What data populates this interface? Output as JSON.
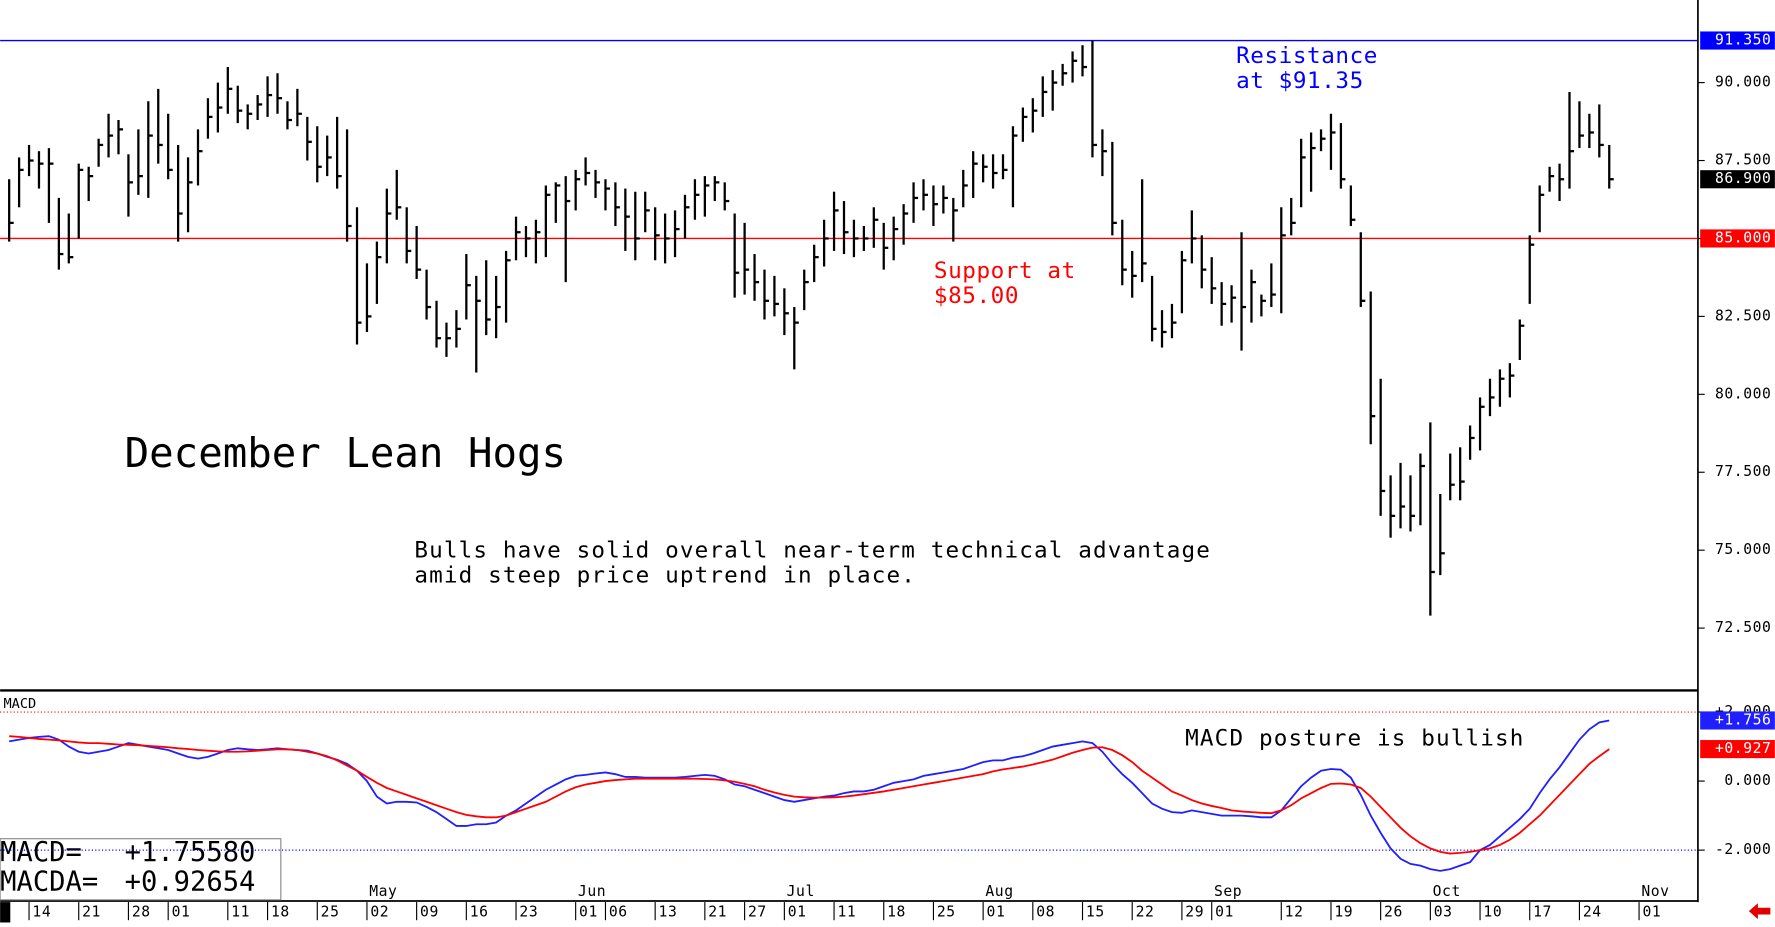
{
  "chart_data": [
    {
      "type": "ohlc",
      "title": "December Lean Hogs",
      "color": "#000000",
      "note": [
        "Bulls have solid overall near-term technical advantage",
        "amid steep price uptrend in place."
      ],
      "ylim": [
        70.5,
        92.65
      ],
      "yticks": [
        {
          "value": 72.5,
          "label": "72.500"
        },
        {
          "value": 75,
          "label": "75.000"
        },
        {
          "value": 77.5,
          "label": "77.500"
        },
        {
          "value": 80,
          "label": "80.000"
        },
        {
          "value": 82.5,
          "label": "82.500"
        },
        {
          "value": 85,
          "label": "85.000"
        },
        {
          "value": 87.5,
          "label": "87.500"
        },
        {
          "value": 90,
          "label": "90.000"
        }
      ],
      "reference_lines": [
        {
          "value": 91.35,
          "label": "91.350",
          "color": "#0000ff",
          "text": [
            "Resistance",
            "at $91.35"
          ]
        },
        {
          "value": 85,
          "label": "85.000",
          "color": "#ff0000",
          "text": [
            "Support at",
            "$85.00"
          ]
        }
      ],
      "last_label": "86.900",
      "high": [
        86.9,
        87.6,
        88.0,
        87.8,
        87.9,
        86.3,
        85.8,
        87.4,
        87.3,
        88.2,
        89.0,
        88.8,
        87.7,
        88.5,
        89.4,
        89.8,
        89.0,
        88.0,
        87.6,
        88.5,
        89.5,
        90.0,
        90.5,
        89.9,
        89.3,
        89.6,
        90.2,
        90.3,
        89.4,
        89.8,
        88.9,
        88.6,
        88.3,
        88.9,
        88.5,
        86.0,
        84.2,
        84.9,
        86.6,
        87.2,
        86.0,
        85.4,
        84.0,
        83.0,
        82.3,
        82.7,
        84.5,
        83.8,
        84.3,
        83.8,
        84.6,
        85.7,
        85.4,
        85.6,
        86.7,
        86.8,
        87.0,
        87.2,
        87.6,
        87.2,
        86.9,
        86.8,
        86.6,
        86.5,
        86.5,
        86.0,
        85.8,
        85.9,
        86.4,
        86.9,
        87.0,
        87.0,
        86.8,
        85.8,
        85.5,
        84.5,
        84.0,
        83.8,
        83.4,
        82.8,
        84.0,
        84.8,
        85.6,
        86.5,
        86.2,
        85.6,
        85.4,
        86.0,
        85.5,
        85.7,
        86.1,
        86.8,
        86.9,
        86.7,
        86.7,
        86.3,
        87.2,
        87.8,
        87.7,
        87.7,
        87.7,
        88.6,
        89.2,
        89.5,
        90.2,
        90.4,
        90.6,
        91.0,
        91.2,
        91.35,
        88.5,
        88.1,
        85.6,
        84.6,
        86.9,
        83.8,
        82.7,
        82.9,
        84.6,
        85.9,
        85.1,
        84.4,
        83.6,
        83.5,
        85.2,
        84.0,
        83.2,
        84.2,
        86.0,
        86.3,
        88.2,
        88.4,
        88.5,
        89.0,
        88.7,
        86.7,
        85.2,
        83.3,
        80.5,
        77.4,
        77.8,
        77.4,
        78.1,
        79.1,
        76.8,
        78.1,
        78.3,
        79.0,
        79.9,
        80.5,
        80.8,
        81.0,
        82.4,
        85.1,
        86.7,
        87.3,
        87.4,
        89.7,
        89.4,
        89.0,
        89.3,
        88.0,
        null,
        null,
        null
      ],
      "low": [
        84.9,
        86.0,
        87.0,
        86.6,
        85.5,
        84.0,
        84.2,
        85.0,
        86.2,
        87.3,
        87.6,
        87.7,
        85.7,
        86.4,
        86.3,
        87.4,
        86.9,
        84.9,
        85.2,
        86.7,
        88.2,
        88.4,
        89.0,
        88.7,
        88.5,
        88.8,
        88.9,
        89.0,
        88.5,
        88.6,
        87.5,
        86.8,
        87.0,
        86.6,
        84.9,
        81.6,
        82.0,
        82.9,
        84.2,
        85.6,
        84.2,
        83.7,
        82.4,
        81.5,
        81.2,
        81.5,
        82.4,
        80.7,
        81.9,
        81.8,
        82.3,
        84.3,
        84.4,
        84.2,
        84.4,
        85.5,
        83.6,
        85.9,
        86.7,
        86.3,
        85.9,
        85.4,
        84.6,
        84.3,
        85.2,
        84.3,
        84.2,
        84.4,
        85.0,
        85.6,
        85.7,
        86.2,
        85.9,
        83.1,
        83.2,
        83.0,
        82.4,
        82.5,
        81.9,
        80.8,
        82.7,
        83.6,
        84.1,
        84.6,
        84.5,
        84.4,
        84.6,
        84.7,
        84.0,
        84.3,
        84.8,
        85.5,
        85.9,
        85.4,
        85.8,
        84.9,
        86.0,
        86.3,
        86.8,
        86.6,
        86.9,
        86.0,
        88.1,
        88.4,
        88.9,
        89.1,
        89.9,
        90.0,
        90.2,
        87.6,
        87.0,
        85.1,
        83.5,
        83.1,
        83.6,
        81.7,
        81.5,
        81.8,
        82.6,
        84.2,
        83.4,
        82.9,
        82.2,
        82.3,
        81.4,
        82.3,
        82.5,
        82.8,
        82.6,
        85.1,
        86.0,
        86.5,
        87.8,
        87.2,
        86.6,
        85.4,
        82.8,
        78.4,
        76.1,
        75.4,
        75.7,
        75.6,
        75.8,
        72.9,
        74.2,
        76.6,
        76.6,
        77.9,
        78.2,
        79.3,
        79.6,
        79.9,
        81.1,
        82.9,
        85.2,
        86.5,
        86.2,
        86.6,
        87.9,
        87.9,
        87.6,
        86.6,
        null,
        null,
        null
      ],
      "close": [
        85.5,
        87.2,
        87.5,
        87.4,
        87.4,
        84.5,
        84.4,
        87.2,
        87.0,
        88.0,
        88.3,
        88.5,
        86.8,
        87.0,
        88.3,
        88.0,
        87.2,
        85.8,
        86.8,
        87.8,
        88.9,
        89.2,
        89.8,
        89.1,
        89.0,
        89.3,
        89.6,
        89.5,
        88.8,
        89.0,
        88.1,
        87.3,
        87.6,
        87.0,
        85.4,
        82.3,
        82.5,
        84.4,
        85.8,
        86.0,
        84.6,
        84.0,
        82.8,
        81.8,
        81.8,
        82.1,
        83.5,
        83.0,
        82.4,
        82.8,
        84.3,
        85.2,
        85.0,
        85.2,
        86.4,
        86.7,
        86.2,
        86.9,
        87.1,
        86.8,
        86.6,
        86.0,
        85.7,
        85.0,
        85.9,
        85.1,
        85.0,
        85.3,
        86.0,
        86.4,
        86.7,
        86.8,
        86.2,
        83.9,
        84.0,
        83.6,
        83.0,
        82.9,
        82.6,
        82.3,
        83.6,
        84.4,
        85.0,
        85.9,
        85.2,
        85.0,
        85.0,
        85.6,
        84.7,
        85.3,
        85.8,
        86.3,
        86.4,
        86.1,
        86.3,
        85.9,
        86.7,
        87.4,
        87.3,
        87.1,
        87.2,
        88.3,
        88.9,
        89.1,
        89.7,
        90.0,
        90.3,
        90.7,
        90.5,
        88.0,
        87.8,
        85.5,
        84.0,
        83.8,
        84.2,
        82.1,
        82.0,
        82.3,
        84.3,
        85.0,
        84.0,
        83.4,
        82.9,
        83.1,
        82.8,
        83.6,
        83.0,
        83.2,
        85.1,
        85.5,
        87.6,
        87.9,
        88.2,
        88.4,
        86.9,
        85.6,
        83.0,
        79.3,
        76.9,
        76.1,
        76.4,
        76.1,
        77.7,
        74.3,
        74.9,
        77.1,
        77.2,
        78.6,
        79.6,
        79.9,
        80.5,
        80.6,
        82.2,
        84.8,
        86.4,
        87.0,
        86.9,
        87.8,
        88.3,
        88.4,
        88.0,
        86.9,
        null,
        null,
        null
      ]
    },
    {
      "type": "line",
      "title": "MACD",
      "note": "MACD posture is bullish",
      "ylim": [
        -3.44,
        2.56
      ],
      "yticks": [
        {
          "value": 2,
          "label": "+2.000",
          "color": "#ff0000"
        },
        {
          "value": 0,
          "label": "0.000"
        },
        {
          "value": -2,
          "label": "-2.000",
          "color": "#0000ff"
        }
      ],
      "categories": [
        null,
        null,
        "14",
        null,
        null,
        null,
        null,
        "21",
        null,
        null,
        null,
        null,
        "28",
        null,
        null,
        null,
        "01",
        null,
        null,
        null,
        null,
        null,
        "11",
        null,
        null,
        null,
        "18",
        null,
        null,
        null,
        null,
        "25",
        null,
        null,
        null,
        null,
        "02",
        null,
        null,
        null,
        null,
        "09",
        null,
        null,
        null,
        null,
        "16",
        null,
        null,
        null,
        null,
        "23",
        null,
        null,
        null,
        null,
        null,
        "01",
        null,
        null,
        "06",
        null,
        null,
        null,
        null,
        "13",
        null,
        null,
        null,
        null,
        "21",
        null,
        null,
        null,
        "27",
        null,
        null,
        null,
        "01",
        null,
        null,
        null,
        null,
        "11",
        null,
        null,
        null,
        null,
        "18",
        null,
        null,
        null,
        null,
        "25",
        null,
        null,
        null,
        null,
        "01",
        null,
        null,
        null,
        null,
        "08",
        null,
        null,
        null,
        null,
        "15",
        null,
        null,
        null,
        null,
        "22",
        null,
        null,
        null,
        null,
        "29",
        null,
        null,
        "01",
        null,
        null,
        null,
        null,
        null,
        null,
        "12",
        null,
        null,
        null,
        null,
        "19",
        null,
        null,
        null,
        null,
        "26",
        null,
        null,
        null,
        null,
        "03",
        null,
        null,
        null,
        null,
        "10",
        null,
        null,
        null,
        null,
        "17",
        null,
        null,
        null,
        null,
        "24",
        null,
        null,
        null,
        null,
        null,
        "01"
      ],
      "months": [
        null,
        null,
        null,
        null,
        null,
        null,
        null,
        null,
        null,
        null,
        null,
        null,
        null,
        null,
        null,
        null,
        null,
        null,
        null,
        null,
        null,
        null,
        null,
        null,
        null,
        null,
        null,
        null,
        null,
        null,
        null,
        null,
        null,
        null,
        null,
        null,
        "May",
        null,
        null,
        null,
        null,
        null,
        null,
        null,
        null,
        null,
        null,
        null,
        null,
        null,
        null,
        null,
        null,
        null,
        null,
        null,
        null,
        "Jun",
        null,
        null,
        null,
        null,
        null,
        null,
        null,
        null,
        null,
        null,
        null,
        null,
        null,
        null,
        null,
        null,
        null,
        null,
        null,
        null,
        "Jul",
        null,
        null,
        null,
        null,
        null,
        null,
        null,
        null,
        null,
        null,
        null,
        null,
        null,
        null,
        null,
        null,
        null,
        null,
        null,
        "Aug",
        null,
        null,
        null,
        null,
        null,
        null,
        null,
        null,
        null,
        null,
        null,
        null,
        null,
        null,
        null,
        null,
        null,
        null,
        null,
        null,
        null,
        null,
        "Sep",
        null,
        null,
        null,
        null,
        null,
        null,
        null,
        null,
        null,
        null,
        null,
        null,
        null,
        null,
        null,
        null,
        null,
        null,
        null,
        null,
        null,
        "Oct",
        null,
        null,
        null,
        null,
        null,
        null,
        null,
        null,
        null,
        null,
        null,
        null,
        null,
        null,
        null,
        null,
        null,
        null,
        null,
        null,
        "Nov"
      ],
      "series": [
        {
          "color": "#1f1fff",
          "readout": "MACD=",
          "readout_value": "+1.75580",
          "last_label": "+1.756",
          "values": [
            1.15,
            1.2,
            1.25,
            1.28,
            1.3,
            1.2,
            1.0,
            0.85,
            0.8,
            0.85,
            0.9,
            1.0,
            1.1,
            1.05,
            1.0,
            0.95,
            0.9,
            0.8,
            0.7,
            0.65,
            0.7,
            0.8,
            0.9,
            0.95,
            0.92,
            0.9,
            0.92,
            0.95,
            0.92,
            0.9,
            0.88,
            0.8,
            0.7,
            0.62,
            0.5,
            0.3,
            0.0,
            -0.45,
            -0.65,
            -0.6,
            -0.6,
            -0.62,
            -0.75,
            -0.9,
            -1.1,
            -1.3,
            -1.3,
            -1.25,
            -1.25,
            -1.2,
            -1.0,
            -0.85,
            -0.65,
            -0.45,
            -0.25,
            -0.1,
            0.05,
            0.15,
            0.18,
            0.22,
            0.25,
            0.2,
            0.12,
            0.12,
            0.1,
            0.1,
            0.1,
            0.1,
            0.12,
            0.15,
            0.18,
            0.15,
            0.05,
            -0.1,
            -0.15,
            -0.25,
            -0.35,
            -0.45,
            -0.55,
            -0.6,
            -0.55,
            -0.5,
            -0.45,
            -0.42,
            -0.35,
            -0.3,
            -0.3,
            -0.25,
            -0.15,
            -0.05,
            0.0,
            0.05,
            0.15,
            0.2,
            0.25,
            0.3,
            0.35,
            0.45,
            0.55,
            0.6,
            0.6,
            0.68,
            0.72,
            0.8,
            0.9,
            1.0,
            1.05,
            1.1,
            1.15,
            1.1,
            0.85,
            0.5,
            0.2,
            -0.05,
            -0.35,
            -0.65,
            -0.8,
            -0.9,
            -0.92,
            -0.85,
            -0.9,
            -0.95,
            -1.0,
            -1.0,
            -1.0,
            -1.02,
            -1.05,
            -1.05,
            -0.85,
            -0.5,
            -0.15,
            0.1,
            0.3,
            0.35,
            0.33,
            0.1,
            -0.4,
            -1.0,
            -1.5,
            -1.95,
            -2.25,
            -2.4,
            -2.45,
            -2.55,
            -2.6,
            -2.55,
            -2.45,
            -2.35,
            -2.0,
            -1.85,
            -1.6,
            -1.35,
            -1.1,
            -0.8,
            -0.35,
            0.05,
            0.4,
            0.8,
            1.2,
            1.5,
            1.7,
            1.7558,
            null,
            null,
            null
          ]
        },
        {
          "color": "#ff0000",
          "readout": "MACDA=",
          "readout_value": "+0.92654",
          "last_label": "+0.927",
          "values": [
            1.3,
            1.28,
            1.25,
            1.22,
            1.2,
            1.18,
            1.15,
            1.12,
            1.1,
            1.1,
            1.08,
            1.06,
            1.05,
            1.04,
            1.02,
            1.0,
            0.98,
            0.95,
            0.93,
            0.9,
            0.88,
            0.86,
            0.85,
            0.85,
            0.86,
            0.88,
            0.9,
            0.92,
            0.92,
            0.9,
            0.85,
            0.8,
            0.72,
            0.6,
            0.45,
            0.3,
            0.12,
            -0.05,
            -0.2,
            -0.3,
            -0.4,
            -0.5,
            -0.6,
            -0.7,
            -0.8,
            -0.9,
            -0.98,
            -1.02,
            -1.05,
            -1.05,
            -1.0,
            -0.9,
            -0.8,
            -0.7,
            -0.6,
            -0.45,
            -0.3,
            -0.18,
            -0.1,
            -0.05,
            0.0,
            0.03,
            0.05,
            0.07,
            0.07,
            0.07,
            0.07,
            0.07,
            0.07,
            0.07,
            0.06,
            0.05,
            0.02,
            -0.02,
            -0.08,
            -0.15,
            -0.25,
            -0.33,
            -0.4,
            -0.45,
            -0.47,
            -0.48,
            -0.48,
            -0.47,
            -0.45,
            -0.42,
            -0.38,
            -0.34,
            -0.3,
            -0.25,
            -0.2,
            -0.15,
            -0.1,
            -0.05,
            0.0,
            0.05,
            0.1,
            0.15,
            0.2,
            0.28,
            0.34,
            0.38,
            0.42,
            0.48,
            0.55,
            0.62,
            0.72,
            0.82,
            0.9,
            0.97,
            0.98,
            0.9,
            0.75,
            0.55,
            0.3,
            0.1,
            -0.1,
            -0.3,
            -0.42,
            -0.55,
            -0.65,
            -0.72,
            -0.78,
            -0.85,
            -0.88,
            -0.9,
            -0.92,
            -0.93,
            -0.85,
            -0.7,
            -0.5,
            -0.35,
            -0.2,
            -0.08,
            -0.07,
            -0.1,
            -0.2,
            -0.45,
            -0.75,
            -1.05,
            -1.35,
            -1.6,
            -1.8,
            -1.95,
            -2.05,
            -2.1,
            -2.08,
            -2.05,
            -2.0,
            -1.95,
            -1.85,
            -1.7,
            -1.5,
            -1.25,
            -1.0,
            -0.7,
            -0.4,
            -0.1,
            0.2,
            0.5,
            0.72,
            0.92654,
            null,
            null,
            null
          ]
        }
      ]
    }
  ]
}
